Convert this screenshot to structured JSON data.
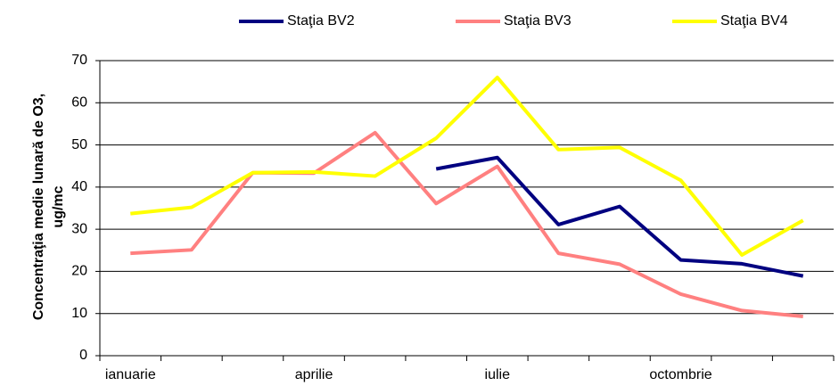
{
  "chart_data": {
    "type": "line",
    "ylabel": [
      "Concentraţia medie lunară de O3,",
      "ug/mc"
    ],
    "categories": [
      "ianuarie",
      null,
      null,
      "aprilie",
      null,
      null,
      "iulie",
      null,
      null,
      "octombrie",
      null,
      null
    ],
    "series": [
      {
        "name": "Staţia BV2",
        "color": "#000080",
        "values": [
          null,
          null,
          null,
          null,
          null,
          44.3,
          47,
          31.1,
          35.4,
          22.7,
          21.8,
          18.9
        ]
      },
      {
        "name": "Staţia BV3",
        "color": "#ff8080",
        "values": [
          24.3,
          25.1,
          43.4,
          43.3,
          52.9,
          36.1,
          44.9,
          24.3,
          21.7,
          14.6,
          10.7,
          9.3
        ]
      },
      {
        "name": "Staţia BV4",
        "color": "#ffff00",
        "values": [
          33.7,
          35.2,
          43.4,
          43.6,
          42.6,
          51.6,
          66,
          48.9,
          49.4,
          41.6,
          23.9,
          32.1
        ]
      }
    ],
    "ylim": [
      0,
      70
    ],
    "yticks": [
      0,
      10,
      20,
      30,
      40,
      50,
      60,
      70
    ],
    "grid": true
  }
}
